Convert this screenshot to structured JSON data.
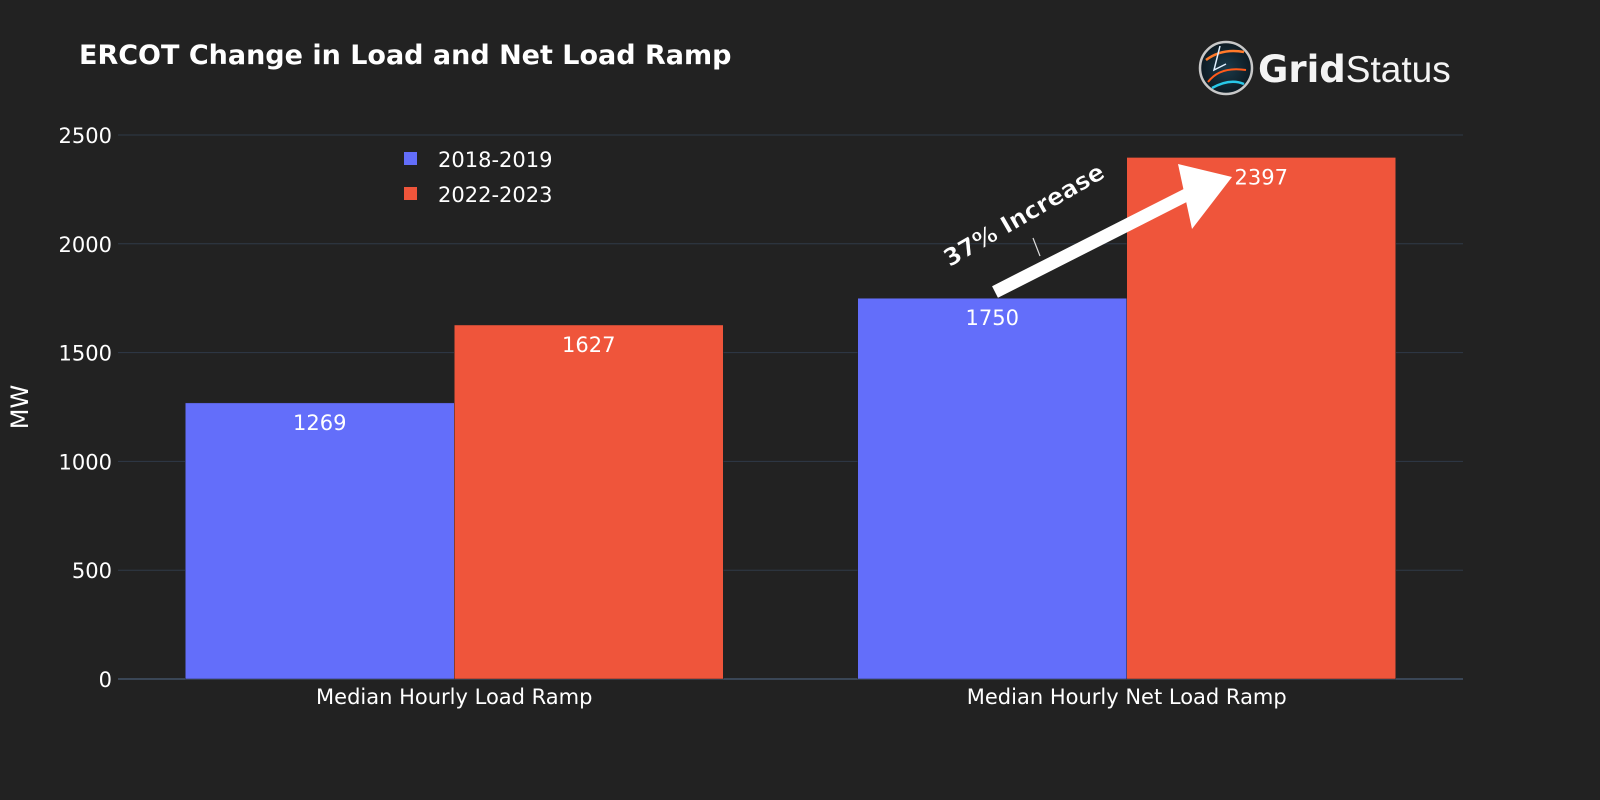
{
  "chart_data": {
    "type": "bar",
    "title": "ERCOT Change in Load and Net Load Ramp",
    "xlabel": "",
    "ylabel": "MW",
    "ylim": [
      0,
      2500
    ],
    "yticks": [
      0,
      500,
      1000,
      1500,
      2000,
      2500
    ],
    "grid": true,
    "legend_position": "top-left",
    "categories": [
      "Median Hourly Load Ramp",
      "Median Hourly Net Load Ramp"
    ],
    "series": [
      {
        "name": "2018-2019",
        "values": [
          1269,
          1750
        ],
        "color": "#636efa"
      },
      {
        "name": "2022-2023",
        "values": [
          1627,
          2397
        ],
        "color": "#ef553b"
      }
    ],
    "annotation": {
      "text": "37% Increase",
      "from_series": 0,
      "to_series": 1,
      "category": 1
    }
  },
  "logo": {
    "text_bold": "Grid",
    "text_regular": "Status"
  },
  "colors": {
    "background": "#222222",
    "grid": "#2f3a48",
    "text": "#ffffff"
  }
}
